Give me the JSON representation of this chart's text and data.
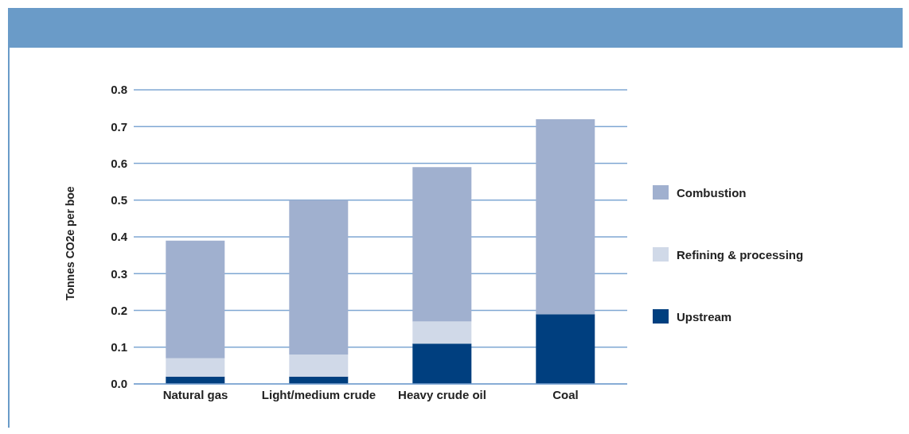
{
  "chart_data": {
    "type": "bar",
    "stacked": true,
    "ylabel": "Tonnes CO2e per boe",
    "categories": [
      "Natural gas",
      "Light/medium crude",
      "Heavy crude oil",
      "Coal"
    ],
    "series": [
      {
        "name": "Upstream",
        "color": "#003f7f",
        "values": [
          0.02,
          0.02,
          0.11,
          0.19
        ]
      },
      {
        "name": "Refining & processing",
        "color": "#d0d9e8",
        "values": [
          0.05,
          0.06,
          0.06,
          0
        ]
      },
      {
        "name": "Combustion",
        "color": "#a0b0cf",
        "values": [
          0.32,
          0.42,
          0.42,
          0.53
        ]
      }
    ],
    "ylim": [
      0,
      0.8
    ],
    "yticks": [
      {
        "value": 0,
        "label": "0.0"
      },
      {
        "value": 0.1,
        "label": "0.1"
      },
      {
        "value": 0.2,
        "label": "0.2"
      },
      {
        "value": 0.3,
        "label": "0.3"
      },
      {
        "value": 0.4,
        "label": "0.4"
      },
      {
        "value": 0.5,
        "label": "0.5"
      },
      {
        "value": 0.6,
        "label": "0.6"
      },
      {
        "value": 0.7,
        "label": "0.7"
      },
      {
        "value": 0.8,
        "label": "0.8"
      }
    ],
    "grid": "y",
    "legend": "right"
  }
}
